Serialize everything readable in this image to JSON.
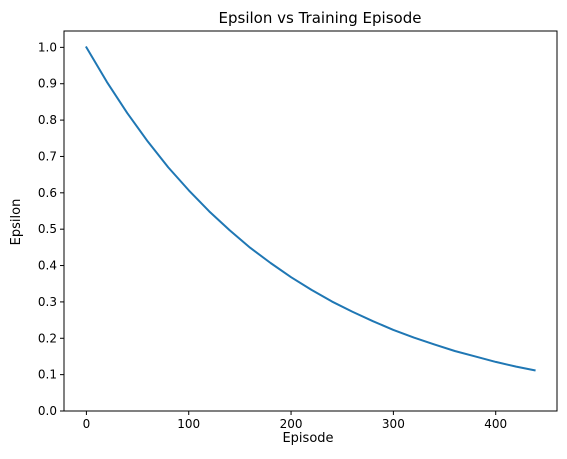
{
  "chart_data": {
    "type": "line",
    "title": "Epsilon vs Training Episode",
    "xlabel": "Episode",
    "ylabel": "Epsilon",
    "xlim": [
      -21.9,
      459.9
    ],
    "ylim": [
      0.0,
      1.045
    ],
    "xticks": [
      0,
      100,
      200,
      300,
      400
    ],
    "xtick_labels": [
      "0",
      "100",
      "200",
      "300",
      "400"
    ],
    "yticks": [
      0.0,
      0.1,
      0.2,
      0.3,
      0.4,
      0.5,
      0.6,
      0.7,
      0.8,
      0.9,
      1.0
    ],
    "ytick_labels": [
      "0.0",
      "0.1",
      "0.2",
      "0.3",
      "0.4",
      "0.5",
      "0.6",
      "0.7",
      "0.8",
      "0.9",
      "1.0"
    ],
    "grid": false,
    "legend": false,
    "series": [
      {
        "color": "#1f77b4",
        "x": [
          0,
          20,
          40,
          60,
          80,
          100,
          120,
          140,
          160,
          180,
          200,
          220,
          240,
          260,
          280,
          300,
          320,
          340,
          360,
          380,
          400,
          420,
          438
        ],
        "y": [
          1.0,
          0.905,
          0.819,
          0.741,
          0.67,
          0.607,
          0.549,
          0.497,
          0.449,
          0.407,
          0.368,
          0.333,
          0.301,
          0.273,
          0.247,
          0.223,
          0.202,
          0.183,
          0.165,
          0.15,
          0.135,
          0.122,
          0.112
        ]
      }
    ]
  }
}
